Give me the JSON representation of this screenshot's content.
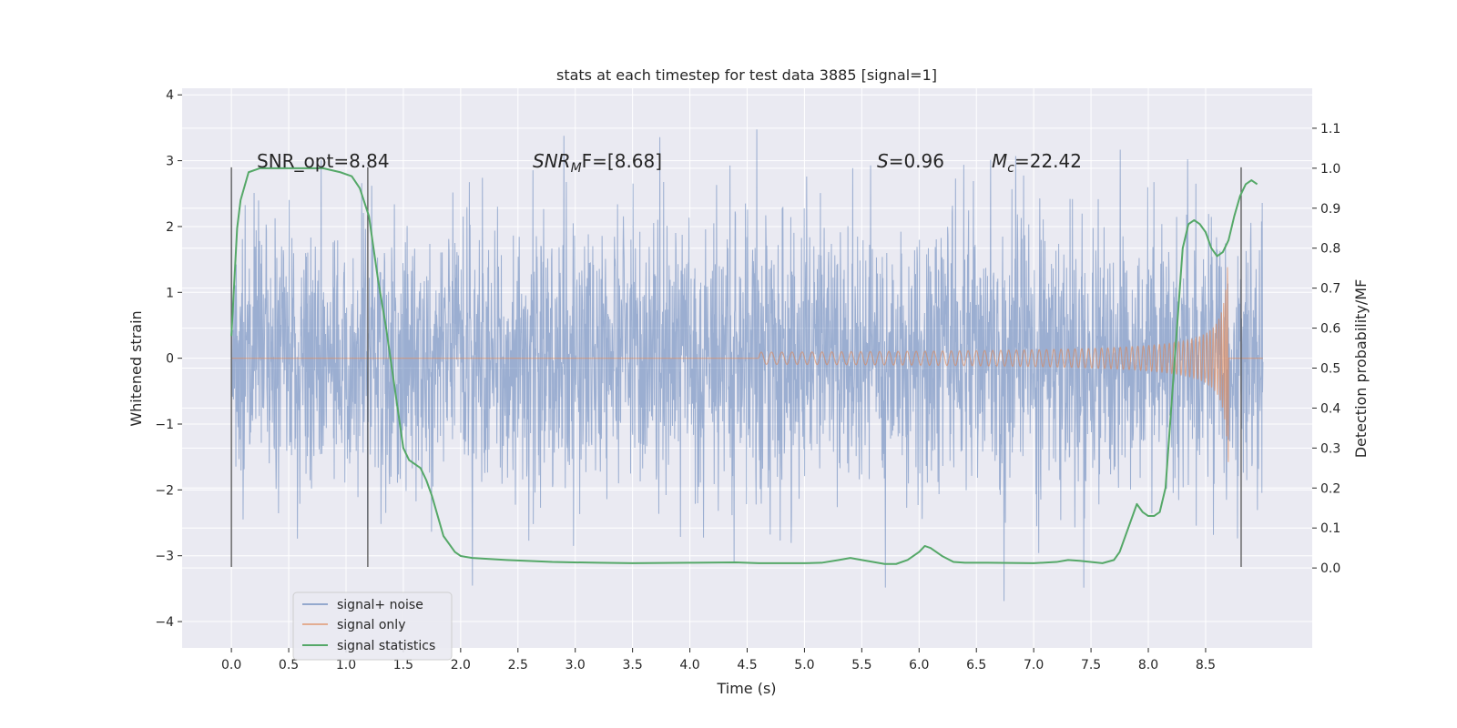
{
  "chart_data": {
    "type": "line",
    "title": "stats at each timestep for test data 3885 [signal=1]",
    "xlabel": "Time (s)",
    "ylabel_left": "Whitened strain",
    "ylabel_right": "Detection probability/MF",
    "xlim": [
      -0.43,
      9.43
    ],
    "ylim_left": [
      -4.4,
      4.1
    ],
    "ylim_right": [
      -0.2,
      1.2
    ],
    "x_ticks": [
      "0.0",
      "0.5",
      "1.0",
      "1.5",
      "2.0",
      "2.5",
      "3.0",
      "3.5",
      "4.0",
      "4.5",
      "5.0",
      "5.5",
      "6.0",
      "6.5",
      "7.0",
      "7.5",
      "8.0",
      "8.5"
    ],
    "y_left_ticks": [
      "4",
      "3",
      "2",
      "1",
      "0",
      "−1",
      "−2",
      "−3",
      "−4"
    ],
    "y_right_ticks": [
      "1.1",
      "1.0",
      "0.9",
      "0.8",
      "0.7",
      "0.6",
      "0.5",
      "0.4",
      "0.3",
      "0.2",
      "0.1",
      "0.0"
    ],
    "grid": true,
    "legend_position": "lower-left",
    "colors": {
      "background": "#eaeaf2",
      "grid": "#ffffff",
      "noise": "#4c72b0",
      "signal": "#dd8452",
      "stats": "#55a868",
      "marker": "#555555"
    },
    "annotations": [
      {
        "text": "SNR_opt=8.84"
      },
      {
        "text": "SNR_MF=[8.68]",
        "base": "SNR",
        "sub": "M",
        "tail": "F=[8.68]"
      },
      {
        "text": "S=0.96",
        "ital": "S",
        "rest": "=0.96"
      },
      {
        "text": "M_c=22.42",
        "ital": "M",
        "sub": "c",
        "rest": "=22.42"
      }
    ],
    "vertical_markers_x": [
      0.0,
      1.19,
      8.81
    ],
    "series": [
      {
        "name": "signal+ noise",
        "axis": "left",
        "time_range": [
          0.0,
          9.0
        ],
        "amplitude_envelope": [
          -4.0,
          3.7
        ]
      },
      {
        "name": "signal only",
        "axis": "left",
        "chirp_start_s": 4.6,
        "chirp_end_s": 8.7,
        "peak_amplitude": 1.8
      },
      {
        "name": "signal statistics",
        "axis": "right",
        "x": [
          0.0,
          0.05,
          0.08,
          0.15,
          0.25,
          0.4,
          0.6,
          0.8,
          0.95,
          1.05,
          1.12,
          1.2,
          1.28,
          1.35,
          1.45,
          1.5,
          1.55,
          1.65,
          1.7,
          1.75,
          1.85,
          1.95,
          2.0,
          2.1,
          2.4,
          2.8,
          3.2,
          3.5,
          4.0,
          4.4,
          4.6,
          5.0,
          5.15,
          5.3,
          5.4,
          5.5,
          5.7,
          5.8,
          5.9,
          6.0,
          6.05,
          6.1,
          6.2,
          6.3,
          6.4,
          6.6,
          7.0,
          7.2,
          7.3,
          7.4,
          7.6,
          7.7,
          7.75,
          7.8,
          7.85,
          7.9,
          7.95,
          8.0,
          8.05,
          8.1,
          8.15,
          8.2,
          8.25,
          8.3,
          8.35,
          8.4,
          8.45,
          8.5,
          8.55,
          8.6,
          8.65,
          8.7,
          8.75,
          8.8,
          8.85,
          8.9,
          8.95
        ],
        "values": [
          0.58,
          0.85,
          0.92,
          0.99,
          1.0,
          1.0,
          1.0,
          1.0,
          0.99,
          0.98,
          0.95,
          0.88,
          0.72,
          0.6,
          0.4,
          0.3,
          0.27,
          0.25,
          0.22,
          0.18,
          0.08,
          0.04,
          0.03,
          0.025,
          0.02,
          0.015,
          0.013,
          0.012,
          0.013,
          0.014,
          0.012,
          0.012,
          0.013,
          0.02,
          0.025,
          0.02,
          0.01,
          0.01,
          0.02,
          0.04,
          0.055,
          0.05,
          0.03,
          0.015,
          0.013,
          0.013,
          0.012,
          0.015,
          0.02,
          0.018,
          0.012,
          0.02,
          0.04,
          0.08,
          0.12,
          0.16,
          0.14,
          0.13,
          0.13,
          0.14,
          0.2,
          0.4,
          0.6,
          0.8,
          0.86,
          0.87,
          0.86,
          0.84,
          0.8,
          0.78,
          0.79,
          0.82,
          0.88,
          0.93,
          0.96,
          0.97,
          0.96
        ]
      }
    ]
  }
}
